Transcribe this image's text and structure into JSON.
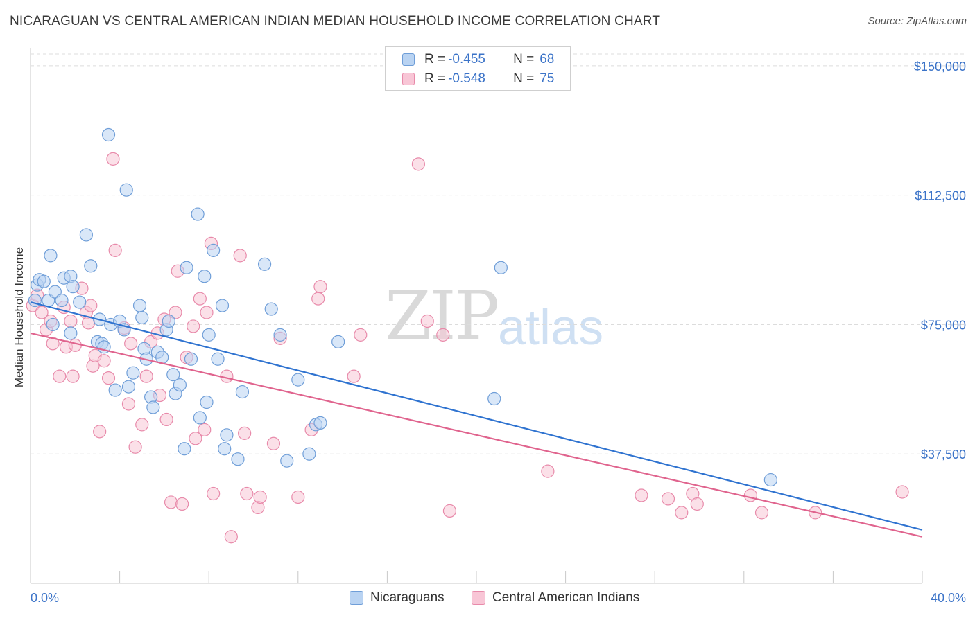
{
  "title": "NICARAGUAN VS CENTRAL AMERICAN INDIAN MEDIAN HOUSEHOLD INCOME CORRELATION CHART",
  "source": "Source: ZipAtlas.com",
  "watermark": {
    "zip": "ZIP",
    "atlas": "atlas"
  },
  "legend": {
    "rows": [
      {
        "r_label": "R =",
        "r_value": "-0.455",
        "n_label": "N =",
        "n_value": "68"
      },
      {
        "r_label": "R =",
        "r_value": "-0.548",
        "n_label": "N =",
        "n_value": "75"
      }
    ]
  },
  "bottom_legend": {
    "series1": "Nicaraguans",
    "series2": "Central American Indians"
  },
  "colors": {
    "blue_fill": "#b9d3f2",
    "blue_stroke": "#6f9ed8",
    "blue_line": "#2f73d0",
    "pink_fill": "#f8c6d6",
    "pink_stroke": "#e88aaa",
    "pink_line": "#e0648e",
    "tick_text": "#3b73c8",
    "grid": "#dcdcdc"
  },
  "chart_data": {
    "type": "scatter",
    "title": "NICARAGUAN VS CENTRAL AMERICAN INDIAN MEDIAN HOUSEHOLD INCOME CORRELATION CHART",
    "xlabel": "",
    "ylabel": "Median Household Income",
    "xlim": [
      0,
      40
    ],
    "ylim": [
      0,
      155000
    ],
    "x_tick_labels": [
      "0.0%",
      "40.0%"
    ],
    "y_ticks": [
      37500,
      75000,
      112500,
      150000
    ],
    "y_tick_labels": [
      "$37,500",
      "$75,000",
      "$112,500",
      "$150,000"
    ],
    "grid": true,
    "series": [
      {
        "name": "Nicaraguans",
        "regression": {
          "x": [
            0,
            40
          ],
          "y": [
            81500,
            15500
          ]
        },
        "points": [
          [
            0.2,
            82000
          ],
          [
            0.3,
            86500
          ],
          [
            0.4,
            88000
          ],
          [
            0.6,
            87500
          ],
          [
            0.8,
            82000
          ],
          [
            0.9,
            95000
          ],
          [
            1.1,
            84500
          ],
          [
            1.4,
            82000
          ],
          [
            1.5,
            88500
          ],
          [
            1.8,
            89000
          ],
          [
            1.9,
            86000
          ],
          [
            1.0,
            75000
          ],
          [
            1.8,
            72500
          ],
          [
            2.2,
            81500
          ],
          [
            2.5,
            101000
          ],
          [
            2.7,
            92000
          ],
          [
            3.0,
            70000
          ],
          [
            3.1,
            76500
          ],
          [
            3.2,
            69500
          ],
          [
            3.3,
            68500
          ],
          [
            3.5,
            130000
          ],
          [
            3.6,
            75000
          ],
          [
            3.8,
            56000
          ],
          [
            4.0,
            76000
          ],
          [
            4.2,
            73500
          ],
          [
            4.3,
            114000
          ],
          [
            4.4,
            57000
          ],
          [
            4.6,
            61000
          ],
          [
            4.9,
            80500
          ],
          [
            5.0,
            77000
          ],
          [
            5.1,
            68000
          ],
          [
            5.2,
            65000
          ],
          [
            5.4,
            54000
          ],
          [
            5.5,
            51000
          ],
          [
            5.7,
            67000
          ],
          [
            5.9,
            65500
          ],
          [
            6.1,
            73500
          ],
          [
            6.2,
            76000
          ],
          [
            6.4,
            60500
          ],
          [
            6.5,
            55000
          ],
          [
            6.7,
            57500
          ],
          [
            6.9,
            39000
          ],
          [
            7.0,
            91500
          ],
          [
            7.2,
            65000
          ],
          [
            7.5,
            107000
          ],
          [
            7.6,
            48000
          ],
          [
            7.8,
            89000
          ],
          [
            7.9,
            52500
          ],
          [
            8.0,
            72000
          ],
          [
            8.2,
            96500
          ],
          [
            8.4,
            65000
          ],
          [
            8.6,
            80500
          ],
          [
            8.7,
            39000
          ],
          [
            8.8,
            43000
          ],
          [
            9.3,
            36000
          ],
          [
            9.5,
            55500
          ],
          [
            10.5,
            92500
          ],
          [
            10.8,
            79500
          ],
          [
            11.2,
            72000
          ],
          [
            11.5,
            35500
          ],
          [
            12.0,
            59000
          ],
          [
            12.5,
            37500
          ],
          [
            12.8,
            46000
          ],
          [
            13.0,
            46500
          ],
          [
            13.8,
            70000
          ],
          [
            20.8,
            53500
          ],
          [
            21.1,
            91500
          ],
          [
            33.2,
            30000
          ]
        ]
      },
      {
        "name": "Central American Indians",
        "regression": {
          "x": [
            0,
            40
          ],
          "y": [
            72500,
            13500
          ]
        },
        "points": [
          [
            0.1,
            80500
          ],
          [
            0.3,
            83500
          ],
          [
            0.5,
            78500
          ],
          [
            0.7,
            73500
          ],
          [
            0.9,
            76000
          ],
          [
            1.0,
            69500
          ],
          [
            1.3,
            60000
          ],
          [
            1.5,
            80000
          ],
          [
            1.6,
            68500
          ],
          [
            1.8,
            76000
          ],
          [
            1.9,
            60000
          ],
          [
            2.0,
            69000
          ],
          [
            2.3,
            85500
          ],
          [
            2.5,
            78500
          ],
          [
            2.6,
            75500
          ],
          [
            2.7,
            80500
          ],
          [
            2.8,
            63000
          ],
          [
            2.9,
            66000
          ],
          [
            3.1,
            44000
          ],
          [
            3.3,
            64500
          ],
          [
            3.5,
            59500
          ],
          [
            3.7,
            123000
          ],
          [
            3.8,
            96500
          ],
          [
            4.2,
            74000
          ],
          [
            4.4,
            52000
          ],
          [
            4.5,
            69500
          ],
          [
            4.7,
            39500
          ],
          [
            5.0,
            46000
          ],
          [
            5.2,
            60000
          ],
          [
            5.4,
            70000
          ],
          [
            5.7,
            72500
          ],
          [
            5.8,
            54500
          ],
          [
            6.0,
            76500
          ],
          [
            6.1,
            47500
          ],
          [
            6.3,
            23500
          ],
          [
            6.5,
            78500
          ],
          [
            6.6,
            90500
          ],
          [
            6.8,
            23000
          ],
          [
            7.0,
            65500
          ],
          [
            7.3,
            74500
          ],
          [
            7.4,
            42000
          ],
          [
            7.6,
            82500
          ],
          [
            7.8,
            44500
          ],
          [
            7.9,
            78500
          ],
          [
            8.1,
            98500
          ],
          [
            8.2,
            26000
          ],
          [
            8.8,
            60000
          ],
          [
            9.0,
            13500
          ],
          [
            9.4,
            95000
          ],
          [
            9.6,
            43500
          ],
          [
            9.7,
            26000
          ],
          [
            10.2,
            22000
          ],
          [
            10.3,
            25000
          ],
          [
            10.9,
            40500
          ],
          [
            11.2,
            71000
          ],
          [
            12.0,
            25000
          ],
          [
            12.6,
            44500
          ],
          [
            12.9,
            82500
          ],
          [
            13.0,
            86000
          ],
          [
            14.5,
            60000
          ],
          [
            14.8,
            72000
          ],
          [
            17.4,
            121500
          ],
          [
            17.8,
            76000
          ],
          [
            18.5,
            72000
          ],
          [
            18.8,
            21000
          ],
          [
            23.2,
            32500
          ],
          [
            27.4,
            25500
          ],
          [
            28.6,
            24500
          ],
          [
            29.2,
            20500
          ],
          [
            29.7,
            26000
          ],
          [
            29.9,
            23000
          ],
          [
            32.3,
            25500
          ],
          [
            32.8,
            20500
          ],
          [
            35.2,
            20500
          ],
          [
            39.1,
            26500
          ]
        ]
      }
    ]
  }
}
